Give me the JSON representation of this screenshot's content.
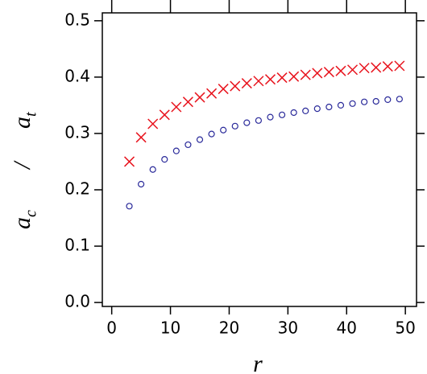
{
  "chart_data": {
    "type": "scatter",
    "xlabel": "r",
    "ylabel": {
      "numerator": {
        "base": "a",
        "sub": "c"
      },
      "slash": "/",
      "denominator": {
        "base": "a",
        "sub": "t"
      }
    },
    "x": [
      3,
      5,
      7,
      9,
      11,
      13,
      15,
      17,
      19,
      21,
      23,
      25,
      27,
      29,
      31,
      33,
      35,
      37,
      39,
      41,
      43,
      45,
      47,
      49
    ],
    "series": [
      {
        "marker": "x",
        "color": "#e8141e",
        "values": [
          0.25,
          0.293,
          0.317,
          0.333,
          0.347,
          0.356,
          0.364,
          0.371,
          0.379,
          0.384,
          0.389,
          0.393,
          0.396,
          0.399,
          0.401,
          0.404,
          0.407,
          0.409,
          0.411,
          0.413,
          0.416,
          0.417,
          0.419,
          0.42
        ]
      },
      {
        "marker": "circle",
        "color": "#2a2a9a",
        "values": [
          0.171,
          0.21,
          0.236,
          0.254,
          0.269,
          0.28,
          0.289,
          0.299,
          0.306,
          0.313,
          0.319,
          0.323,
          0.329,
          0.333,
          0.337,
          0.34,
          0.344,
          0.347,
          0.35,
          0.353,
          0.356,
          0.357,
          0.36,
          0.361
        ]
      }
    ],
    "xlim": [
      -1.6,
      51.9
    ],
    "ylim": [
      -0.007,
      0.514
    ],
    "xticks": [
      0,
      10,
      20,
      30,
      40,
      50
    ],
    "yticks": [
      {
        "value": 0,
        "label": "0.0"
      },
      0.1,
      0.2,
      0.3,
      0.4,
      0.5
    ],
    "mirror_ticks": true
  }
}
